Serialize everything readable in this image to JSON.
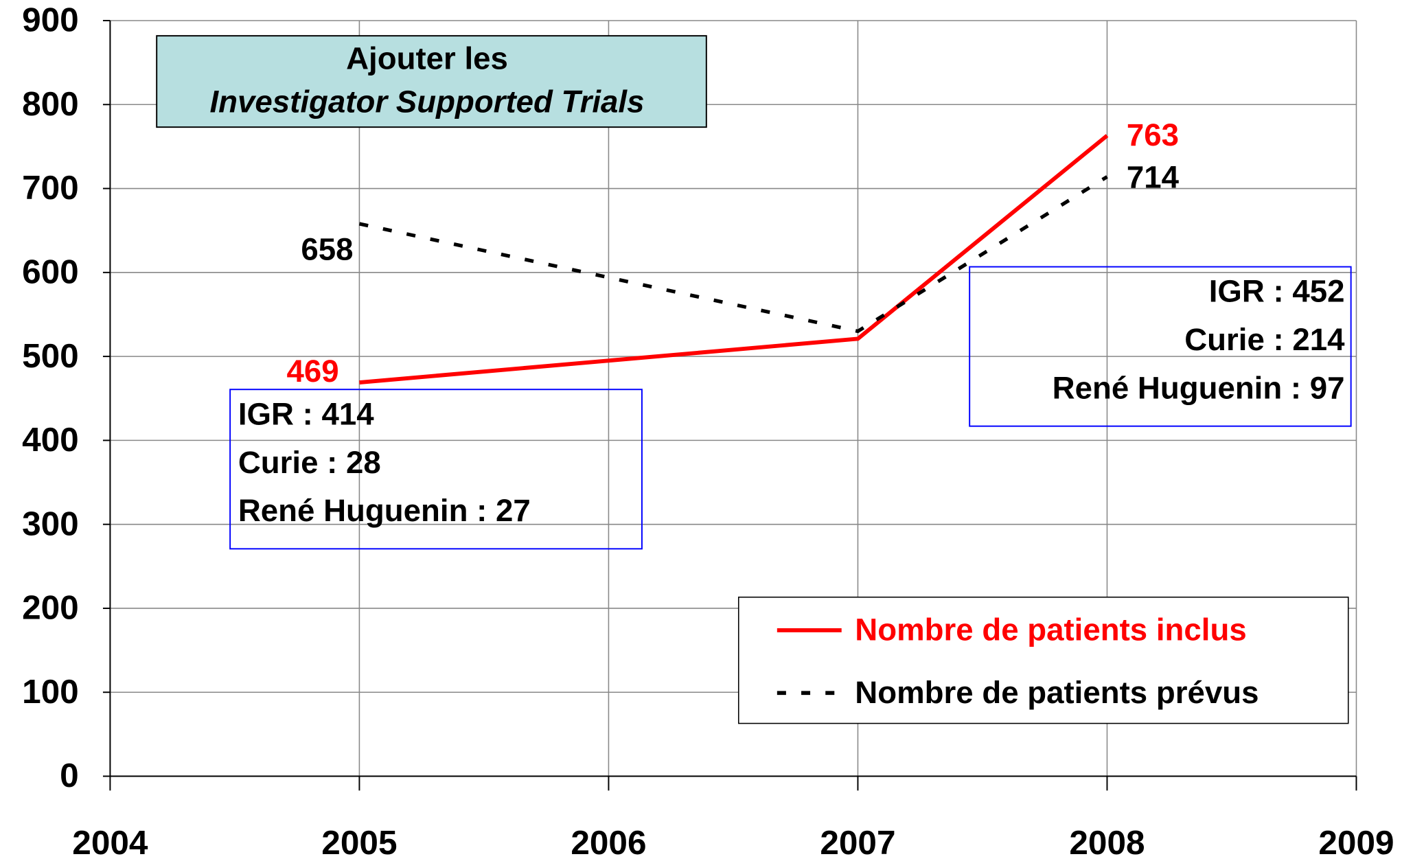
{
  "chart_data": {
    "type": "line",
    "x": [
      2005,
      2007,
      2008
    ],
    "series": [
      {
        "name": "Nombre de patients inclus",
        "color": "#ff0000",
        "dash": false,
        "values": [
          469,
          521,
          763
        ]
      },
      {
        "name": "Nombre de patients prévus",
        "color": "#000000",
        "dash": true,
        "values": [
          658,
          530,
          714
        ]
      }
    ],
    "xlim": [
      2004,
      2009
    ],
    "xticks": [
      2004,
      2005,
      2006,
      2007,
      2008,
      2009
    ],
    "ylim": [
      0,
      900
    ],
    "yticks": [
      0,
      100,
      200,
      300,
      400,
      500,
      600,
      700,
      800,
      900
    ],
    "grid": true,
    "legend": "lower right",
    "annotations": [
      {
        "lines": [
          "Ajouter les",
          "Investigator Supported Trials"
        ]
      },
      {
        "lines": [
          "IGR : 414",
          "Curie : 28",
          "René Huguenin : 27"
        ]
      },
      {
        "lines": [
          "IGR : 452",
          "Curie : 214",
          "René Huguenin : 97"
        ]
      }
    ]
  }
}
